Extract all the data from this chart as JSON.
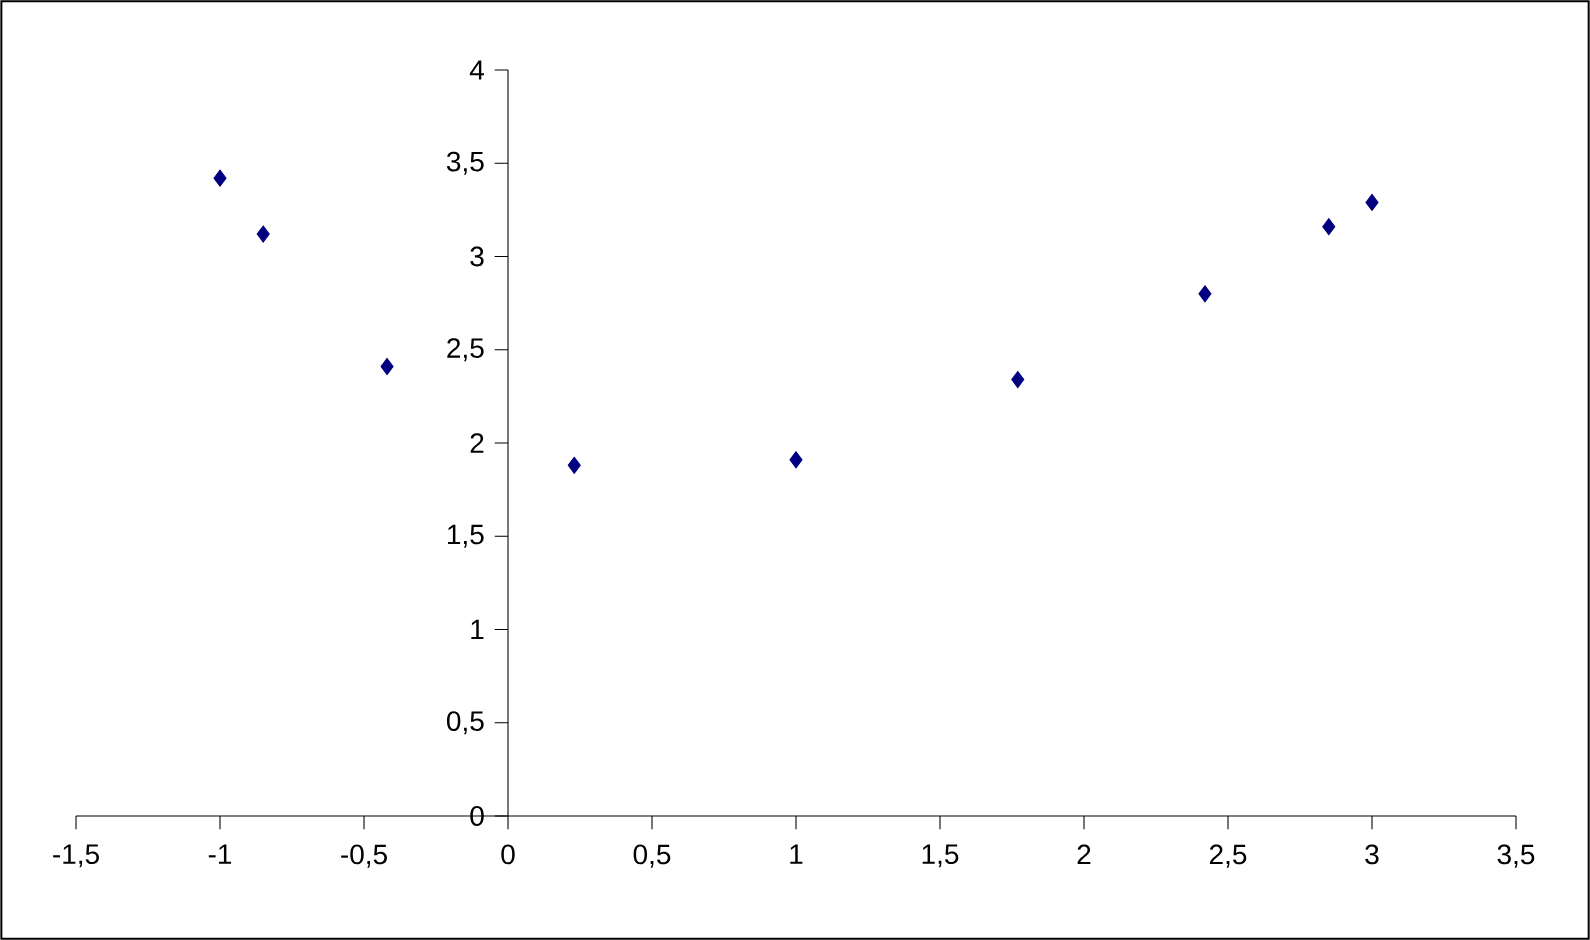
{
  "chart_data": {
    "type": "scatter",
    "color": "#000080",
    "marker": "diamond",
    "grid": false,
    "x": [
      -1,
      -0.85,
      -0.42,
      0.23,
      1,
      1.77,
      2.42,
      2.85,
      3
    ],
    "values": [
      3.42,
      3.12,
      2.41,
      1.88,
      1.91,
      2.34,
      2.8,
      3.16,
      3.29
    ],
    "xlim": [
      -1.5,
      3.5
    ],
    "ylim": [
      0,
      4
    ],
    "xticks": [
      {
        "value": -1.5,
        "label": "-1,5"
      },
      -1,
      {
        "value": -0.5,
        "label": "-0,5"
      },
      0,
      {
        "value": 0.5,
        "label": "0,5"
      },
      1,
      {
        "value": 1.5,
        "label": "1,5"
      },
      2,
      {
        "value": 2.5,
        "label": "2,5"
      },
      3,
      {
        "value": 3.5,
        "label": "3,5"
      }
    ],
    "yticks": [
      0,
      {
        "value": 0.5,
        "label": "0,5"
      },
      1,
      {
        "value": 1.5,
        "label": "1,5"
      },
      2,
      {
        "value": 2.5,
        "label": "2,5"
      },
      3,
      {
        "value": 3.5,
        "label": "3,5"
      },
      4
    ]
  }
}
